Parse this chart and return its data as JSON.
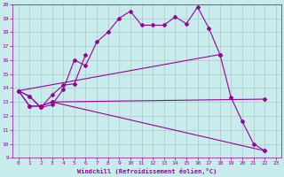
{
  "xlabel": "Windchill (Refroidissement éolien,°C)",
  "background_color": "#c8ecec",
  "line_color": "#990099",
  "grid_color": "#b0c8c8",
  "xlim": [
    -0.5,
    23.5
  ],
  "ylim": [
    9,
    20
  ],
  "yticks": [
    9,
    10,
    11,
    12,
    13,
    14,
    15,
    16,
    17,
    18,
    19,
    20
  ],
  "xticks": [
    0,
    1,
    2,
    3,
    4,
    5,
    6,
    7,
    8,
    9,
    10,
    11,
    12,
    13,
    14,
    15,
    16,
    17,
    18,
    19,
    20,
    21,
    22,
    23
  ],
  "line1_x": [
    0,
    1,
    2,
    3,
    4,
    5,
    6,
    7,
    8,
    9,
    10,
    11,
    12,
    13,
    14,
    15,
    16,
    17,
    18,
    19,
    20,
    21,
    22
  ],
  "line1_y": [
    13.8,
    13.4,
    12.6,
    12.8,
    13.9,
    16.0,
    15.6,
    17.3,
    18.0,
    19.0,
    19.5,
    18.5,
    18.5,
    18.5,
    19.1,
    18.6,
    19.8,
    18.3,
    16.4,
    13.3,
    11.6,
    10.0,
    9.5
  ],
  "line2_x": [
    0,
    1,
    2,
    3,
    4,
    5,
    6
  ],
  "line2_y": [
    13.8,
    13.4,
    12.6,
    13.5,
    14.2,
    14.3,
    16.4
  ],
  "line3_x": [
    0,
    1,
    2,
    3,
    22
  ],
  "line3_y": [
    13.8,
    12.7,
    12.7,
    13.0,
    13.2
  ],
  "line4_x": [
    0,
    1,
    2,
    3,
    22
  ],
  "line4_y": [
    13.8,
    12.7,
    12.7,
    13.0,
    9.5
  ],
  "line5_x": [
    0,
    18
  ],
  "line5_y": [
    13.8,
    16.4
  ]
}
